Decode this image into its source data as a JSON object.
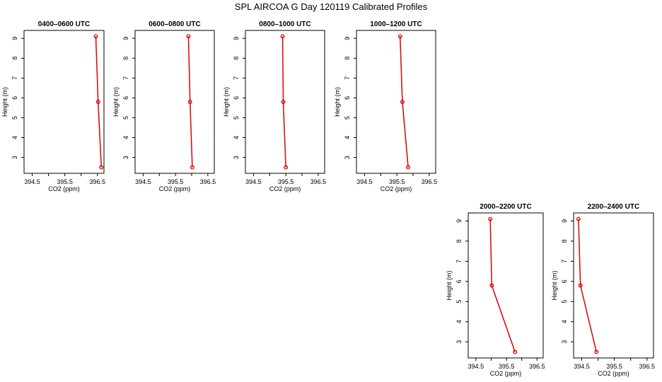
{
  "title": "SPL AIRCOA G  Day 120119  Calibrated Profiles",
  "series_color": "#dd0000",
  "chart_data": [
    {
      "type": "line",
      "title": "0400–0600 UTC",
      "xlabel": "CO2 (ppm)",
      "ylabel": "Height (m)",
      "xlim": [
        394.25,
        396.7
      ],
      "ylim": [
        2.2,
        9.4
      ],
      "xticks": [
        "394.5",
        "395.5",
        "396.5"
      ],
      "yticks": [
        "3",
        "4",
        "5",
        "6",
        "7",
        "8",
        "9"
      ],
      "x": [
        396.45,
        396.52,
        396.62
      ],
      "y": [
        9.1,
        5.8,
        2.5
      ]
    },
    {
      "type": "line",
      "title": "0600–0800 UTC",
      "xlabel": "CO2 (ppm)",
      "ylabel": "Height (m)",
      "xlim": [
        394.25,
        396.7
      ],
      "ylim": [
        2.2,
        9.4
      ],
      "xticks": [
        "394.5",
        "395.5",
        "396.5"
      ],
      "yticks": [
        "3",
        "4",
        "5",
        "6",
        "7",
        "8",
        "9"
      ],
      "x": [
        395.9,
        395.95,
        396.02
      ],
      "y": [
        9.1,
        5.8,
        2.5
      ]
    },
    {
      "type": "line",
      "title": "0800–1000 UTC",
      "xlabel": "CO2 (ppm)",
      "ylabel": "Height (m)",
      "xlim": [
        394.25,
        396.7
      ],
      "ylim": [
        2.2,
        9.4
      ],
      "xticks": [
        "394.5",
        "395.5",
        "396.5"
      ],
      "yticks": [
        "3",
        "4",
        "5",
        "6",
        "7",
        "8",
        "9"
      ],
      "x": [
        395.4,
        395.42,
        395.5
      ],
      "y": [
        9.1,
        5.8,
        2.5
      ]
    },
    {
      "type": "line",
      "title": "1000–1200 UTC",
      "xlabel": "CO2 (ppm)",
      "ylabel": "Height (m)",
      "xlim": [
        394.25,
        396.7
      ],
      "ylim": [
        2.2,
        9.4
      ],
      "xticks": [
        "394.5",
        "395.5",
        "396.5"
      ],
      "yticks": [
        "3",
        "4",
        "5",
        "6",
        "7",
        "8",
        "9"
      ],
      "x": [
        395.6,
        395.67,
        395.85
      ],
      "y": [
        9.1,
        5.8,
        2.5
      ]
    },
    {
      "type": "line",
      "title": "2000–2200 UTC",
      "xlabel": "CO2 (ppm)",
      "ylabel": "Height (m)",
      "xlim": [
        394.25,
        396.7
      ],
      "ylim": [
        2.2,
        9.4
      ],
      "xticks": [
        "394.5",
        "395.5",
        "396.5"
      ],
      "yticks": [
        "3",
        "4",
        "5",
        "6",
        "7",
        "8",
        "9"
      ],
      "x": [
        394.97,
        395.02,
        395.78
      ],
      "y": [
        9.1,
        5.8,
        2.5
      ]
    },
    {
      "type": "line",
      "title": "2200–2400 UTC",
      "xlabel": "CO2 (ppm)",
      "ylabel": "Height (m)",
      "xlim": [
        394.25,
        396.7
      ],
      "ylim": [
        2.2,
        9.4
      ],
      "xticks": [
        "394.5",
        "395.5",
        "396.5"
      ],
      "yticks": [
        "3",
        "4",
        "5",
        "6",
        "7",
        "8",
        "9"
      ],
      "x": [
        394.4,
        394.46,
        394.95
      ],
      "y": [
        9.1,
        5.8,
        2.5
      ]
    }
  ]
}
